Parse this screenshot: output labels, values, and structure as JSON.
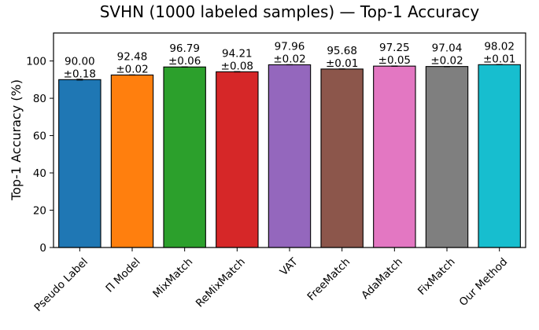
{
  "chart_data": {
    "type": "bar",
    "title": "SVHN (1000 labeled samples) — Top-1 Accuracy",
    "xlabel": "",
    "ylabel": "Top-1 Accuracy (%)",
    "ylim": [
      0,
      115
    ],
    "yticks": [
      0,
      20,
      40,
      60,
      80,
      100
    ],
    "grid": false,
    "categories": [
      "Pseudo Label",
      "Π Model",
      "MixMatch",
      "ReMixMatch",
      "VAT",
      "FreeMatch",
      "AdaMatch",
      "FixMatch",
      "Our Method"
    ],
    "values": [
      90.0,
      92.48,
      96.79,
      94.21,
      97.96,
      95.68,
      97.25,
      97.04,
      98.02
    ],
    "errors": [
      0.18,
      0.02,
      0.06,
      0.08,
      0.02,
      0.01,
      0.05,
      0.02,
      0.01
    ],
    "value_labels": [
      "90.00",
      "92.48",
      "96.79",
      "94.21",
      "97.96",
      "95.68",
      "97.25",
      "97.04",
      "98.02"
    ],
    "error_labels": [
      "±0.18",
      "±0.02",
      "±0.06",
      "±0.08",
      "±0.02",
      "±0.01",
      "±0.05",
      "±0.02",
      "±0.01"
    ],
    "colors": [
      "#1f77b4",
      "#ff7f0e",
      "#2ca02c",
      "#d62728",
      "#9467bd",
      "#8c564b",
      "#e377c2",
      "#7f7f7f",
      "#17becf"
    ]
  }
}
